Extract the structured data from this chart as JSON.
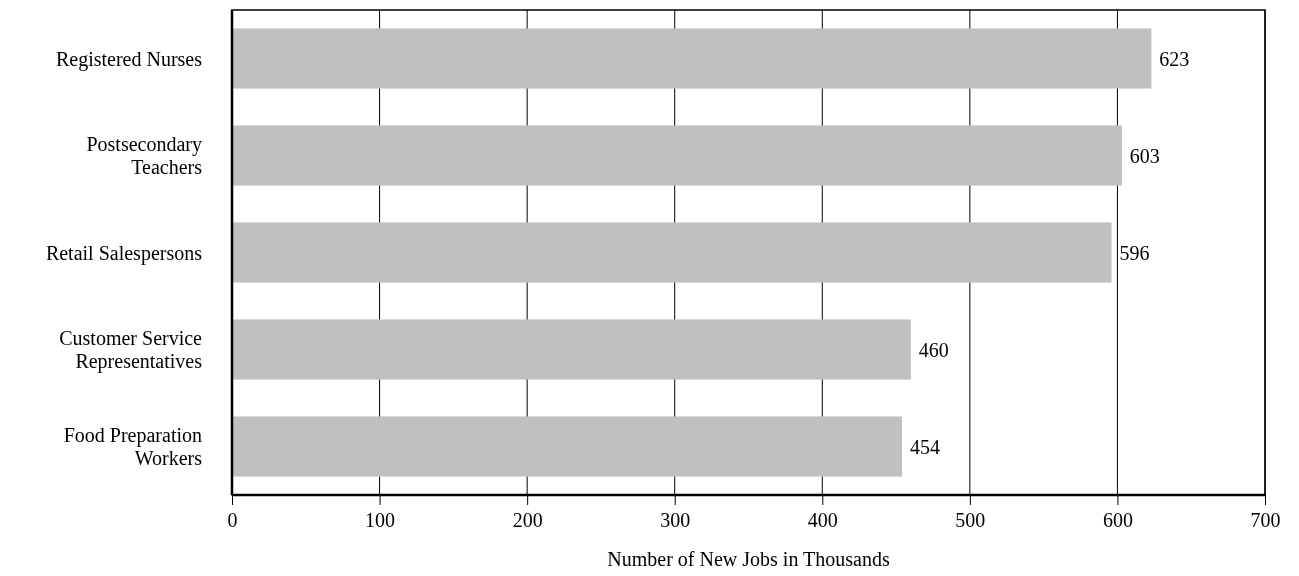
{
  "chart_data": {
    "type": "bar",
    "orientation": "horizontal",
    "xlabel": "Number of New Jobs in Thousands",
    "categories": [
      "Registered Nurses",
      "Postsecondary Teachers",
      "Retail Salespersons",
      "Customer Service Representatives",
      "Food Preparation Workers"
    ],
    "values": [
      623,
      603,
      596,
      460,
      454
    ],
    "color": "#c0c0c0",
    "xlim": [
      0,
      700
    ],
    "xticks": [
      0,
      100,
      200,
      300,
      400,
      500,
      600,
      700
    ],
    "grid": "x",
    "data_labels": true
  }
}
